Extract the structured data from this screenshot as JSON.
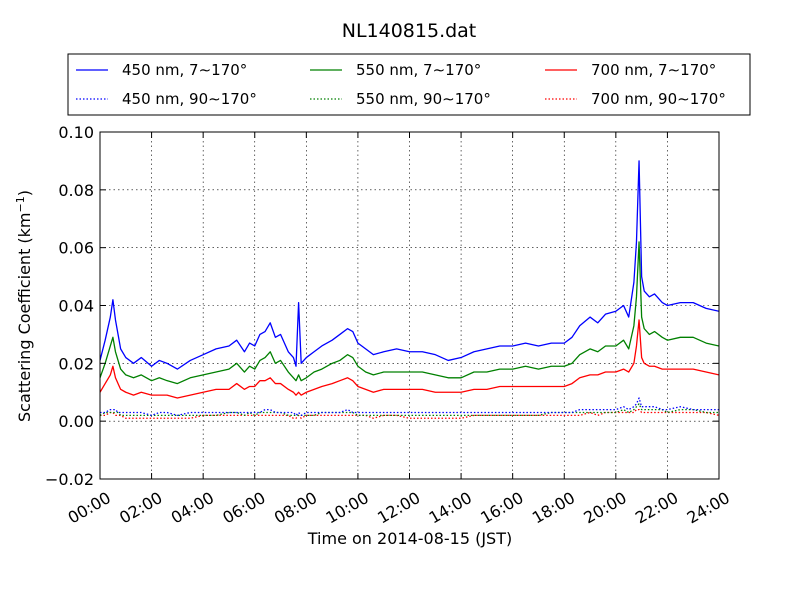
{
  "chart_data": {
    "type": "line",
    "title": "NL140815.dat",
    "xlabel": "Time on 2014-08-15 (JST)",
    "ylabel": "Scattering Coefficient (km",
    "ylabel_exponent": "−1",
    "ylabel_suffix": ")",
    "xlim": [
      "00:00",
      "24:00"
    ],
    "ylim": [
      -0.02,
      0.1
    ],
    "xticks": [
      "00:00",
      "02:00",
      "04:00",
      "06:00",
      "08:00",
      "10:00",
      "12:00",
      "14:00",
      "16:00",
      "18:00",
      "20:00",
      "22:00",
      "24:00"
    ],
    "yticks": [
      "−0.02",
      "0.00",
      "0.02",
      "0.04",
      "0.06",
      "0.08",
      "0.10"
    ],
    "ytick_values": [
      -0.02,
      0.0,
      0.02,
      0.04,
      0.06,
      0.08,
      0.1
    ],
    "grid": true,
    "legend_position": "top",
    "x_hours": [
      0.0,
      0.2,
      0.4,
      0.5,
      0.6,
      0.7,
      0.8,
      1.0,
      1.3,
      1.6,
      2.0,
      2.3,
      2.6,
      3.0,
      3.5,
      4.0,
      4.5,
      5.0,
      5.3,
      5.6,
      5.8,
      6.0,
      6.2,
      6.4,
      6.6,
      6.8,
      7.0,
      7.3,
      7.5,
      7.6,
      7.7,
      7.8,
      8.0,
      8.3,
      8.6,
      9.0,
      9.3,
      9.6,
      9.8,
      10.0,
      10.3,
      10.6,
      11.0,
      11.5,
      12.0,
      12.5,
      13.0,
      13.5,
      14.0,
      14.5,
      15.0,
      15.5,
      16.0,
      16.5,
      17.0,
      17.5,
      18.0,
      18.3,
      18.6,
      19.0,
      19.3,
      19.6,
      20.0,
      20.3,
      20.5,
      20.7,
      20.8,
      20.9,
      21.0,
      21.1,
      21.3,
      21.5,
      21.8,
      22.0,
      22.5,
      23.0,
      23.5,
      24.0
    ],
    "series": [
      {
        "name": "450 nm, 7∼170°",
        "color": "#0000ff",
        "style": "solid",
        "values": [
          0.021,
          0.028,
          0.036,
          0.042,
          0.035,
          0.03,
          0.025,
          0.022,
          0.02,
          0.022,
          0.019,
          0.021,
          0.02,
          0.018,
          0.021,
          0.023,
          0.025,
          0.026,
          0.028,
          0.024,
          0.027,
          0.026,
          0.03,
          0.031,
          0.034,
          0.029,
          0.03,
          0.024,
          0.022,
          0.019,
          0.041,
          0.02,
          0.022,
          0.024,
          0.026,
          0.028,
          0.03,
          0.032,
          0.031,
          0.027,
          0.025,
          0.023,
          0.024,
          0.025,
          0.024,
          0.024,
          0.023,
          0.021,
          0.022,
          0.024,
          0.025,
          0.026,
          0.026,
          0.027,
          0.026,
          0.027,
          0.027,
          0.029,
          0.033,
          0.036,
          0.034,
          0.037,
          0.038,
          0.04,
          0.036,
          0.048,
          0.062,
          0.09,
          0.05,
          0.045,
          0.043,
          0.044,
          0.041,
          0.04,
          0.041,
          0.041,
          0.039,
          0.038
        ]
      },
      {
        "name": "550 nm, 7∼170°",
        "color": "#008000",
        "style": "solid",
        "values": [
          0.015,
          0.02,
          0.026,
          0.029,
          0.024,
          0.021,
          0.018,
          0.016,
          0.015,
          0.016,
          0.014,
          0.015,
          0.014,
          0.013,
          0.015,
          0.016,
          0.017,
          0.018,
          0.02,
          0.017,
          0.019,
          0.018,
          0.021,
          0.022,
          0.024,
          0.02,
          0.021,
          0.017,
          0.015,
          0.014,
          0.016,
          0.014,
          0.015,
          0.017,
          0.018,
          0.02,
          0.021,
          0.023,
          0.022,
          0.019,
          0.017,
          0.016,
          0.017,
          0.017,
          0.017,
          0.017,
          0.016,
          0.015,
          0.015,
          0.017,
          0.017,
          0.018,
          0.018,
          0.019,
          0.018,
          0.019,
          0.019,
          0.02,
          0.023,
          0.025,
          0.024,
          0.026,
          0.026,
          0.028,
          0.025,
          0.033,
          0.043,
          0.062,
          0.036,
          0.032,
          0.03,
          0.031,
          0.029,
          0.028,
          0.029,
          0.029,
          0.027,
          0.026
        ]
      },
      {
        "name": "700 nm, 7∼170°",
        "color": "#ff0000",
        "style": "solid",
        "values": [
          0.01,
          0.013,
          0.016,
          0.019,
          0.015,
          0.013,
          0.011,
          0.01,
          0.009,
          0.01,
          0.009,
          0.009,
          0.009,
          0.008,
          0.009,
          0.01,
          0.011,
          0.011,
          0.013,
          0.011,
          0.012,
          0.012,
          0.014,
          0.014,
          0.015,
          0.013,
          0.013,
          0.011,
          0.01,
          0.009,
          0.01,
          0.009,
          0.01,
          0.011,
          0.012,
          0.013,
          0.014,
          0.015,
          0.014,
          0.012,
          0.011,
          0.01,
          0.011,
          0.011,
          0.011,
          0.011,
          0.01,
          0.01,
          0.01,
          0.011,
          0.011,
          0.012,
          0.012,
          0.012,
          0.012,
          0.012,
          0.012,
          0.013,
          0.015,
          0.016,
          0.016,
          0.017,
          0.017,
          0.018,
          0.017,
          0.02,
          0.026,
          0.035,
          0.022,
          0.02,
          0.019,
          0.019,
          0.018,
          0.018,
          0.018,
          0.018,
          0.017,
          0.016
        ]
      },
      {
        "name": "450 nm, 90∼170°",
        "color": "#0000ff",
        "style": "dotted",
        "values": [
          0.003,
          0.003,
          0.004,
          0.004,
          0.004,
          0.003,
          0.003,
          0.003,
          0.003,
          0.003,
          0.002,
          0.003,
          0.003,
          0.002,
          0.003,
          0.003,
          0.003,
          0.003,
          0.003,
          0.003,
          0.003,
          0.003,
          0.003,
          0.004,
          0.004,
          0.003,
          0.003,
          0.003,
          0.003,
          0.002,
          0.003,
          0.002,
          0.003,
          0.003,
          0.003,
          0.003,
          0.003,
          0.004,
          0.003,
          0.003,
          0.003,
          0.003,
          0.003,
          0.003,
          0.003,
          0.003,
          0.003,
          0.003,
          0.003,
          0.003,
          0.003,
          0.003,
          0.003,
          0.003,
          0.003,
          0.003,
          0.003,
          0.003,
          0.004,
          0.004,
          0.004,
          0.004,
          0.004,
          0.005,
          0.004,
          0.005,
          0.006,
          0.008,
          0.005,
          0.005,
          0.005,
          0.005,
          0.004,
          0.004,
          0.005,
          0.004,
          0.004,
          0.004
        ]
      },
      {
        "name": "550 nm, 90∼170°",
        "color": "#008000",
        "style": "dotted",
        "values": [
          0.002,
          0.003,
          0.003,
          0.003,
          0.003,
          0.003,
          0.002,
          0.002,
          0.002,
          0.002,
          0.002,
          0.002,
          0.002,
          0.002,
          0.002,
          0.002,
          0.002,
          0.003,
          0.003,
          0.002,
          0.003,
          0.002,
          0.003,
          0.003,
          0.003,
          0.003,
          0.003,
          0.002,
          0.002,
          0.002,
          0.002,
          0.002,
          0.002,
          0.002,
          0.003,
          0.003,
          0.003,
          0.003,
          0.003,
          0.002,
          0.002,
          0.002,
          0.002,
          0.002,
          0.002,
          0.002,
          0.002,
          0.002,
          0.002,
          0.002,
          0.002,
          0.002,
          0.002,
          0.002,
          0.002,
          0.003,
          0.003,
          0.003,
          0.003,
          0.003,
          0.003,
          0.003,
          0.003,
          0.004,
          0.003,
          0.004,
          0.005,
          0.006,
          0.004,
          0.004,
          0.004,
          0.004,
          0.004,
          0.003,
          0.004,
          0.004,
          0.003,
          0.003
        ]
      },
      {
        "name": "700 nm, 90∼170°",
        "color": "#ff0000",
        "style": "dotted",
        "values": [
          0.002,
          0.002,
          0.003,
          0.003,
          0.002,
          0.002,
          0.002,
          0.001,
          0.001,
          0.001,
          0.001,
          0.001,
          0.001,
          0.001,
          0.001,
          0.002,
          0.002,
          0.002,
          0.002,
          0.002,
          0.002,
          0.002,
          0.002,
          0.002,
          0.002,
          0.002,
          0.002,
          0.002,
          0.001,
          0.001,
          0.002,
          0.001,
          0.002,
          0.002,
          0.002,
          0.002,
          0.002,
          0.002,
          0.002,
          0.002,
          0.002,
          0.001,
          0.002,
          0.002,
          0.001,
          0.001,
          0.001,
          0.001,
          0.001,
          0.002,
          0.002,
          0.002,
          0.002,
          0.002,
          0.002,
          0.002,
          0.002,
          0.002,
          0.002,
          0.003,
          0.002,
          0.003,
          0.003,
          0.003,
          0.003,
          0.003,
          0.004,
          0.004,
          0.003,
          0.003,
          0.003,
          0.003,
          0.003,
          0.003,
          0.003,
          0.003,
          0.003,
          0.002
        ]
      }
    ]
  }
}
